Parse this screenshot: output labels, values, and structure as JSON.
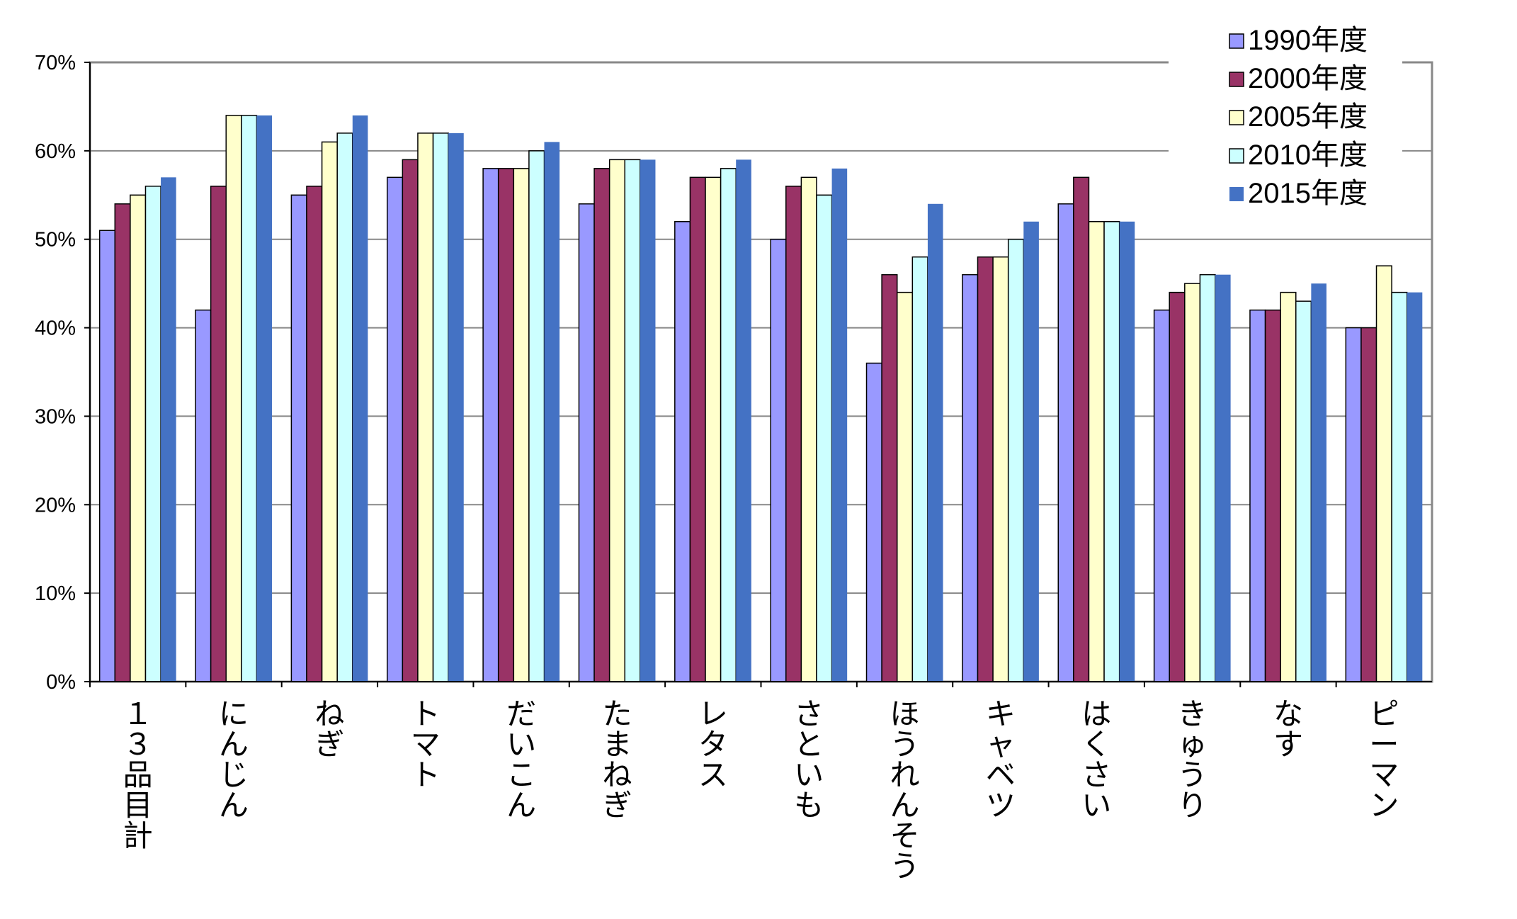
{
  "chart_data": {
    "type": "bar",
    "categories": [
      "１３品目計",
      "にんじん",
      "ねぎ",
      "トマト",
      "だいこん",
      "たまねぎ",
      "レタス",
      "さといも",
      "ほうれんそう",
      "キャベツ",
      "はくさい",
      "きゅうり",
      "なす",
      "ピーマン"
    ],
    "series": [
      {
        "name": "1990年度",
        "color": "#9999ff",
        "values": [
          51,
          42,
          55,
          57,
          58,
          54,
          52,
          50,
          36,
          46,
          54,
          42,
          42,
          40
        ]
      },
      {
        "name": "2000年度",
        "color": "#993366",
        "values": [
          54,
          56,
          56,
          59,
          58,
          58,
          57,
          56,
          46,
          48,
          57,
          44,
          42,
          40
        ]
      },
      {
        "name": "2005年度",
        "color": "#ffffcc",
        "values": [
          55,
          64,
          61,
          62,
          58,
          59,
          57,
          57,
          44,
          48,
          52,
          45,
          44,
          47
        ]
      },
      {
        "name": "2010年度",
        "color": "#ccffff",
        "values": [
          56,
          64,
          62,
          62,
          60,
          59,
          58,
          55,
          48,
          50,
          52,
          46,
          43,
          44
        ]
      },
      {
        "name": "2015年度",
        "color": "#4472c4",
        "values": [
          57,
          64,
          64,
          62,
          61,
          59,
          59,
          58,
          54,
          52,
          52,
          46,
          45,
          44
        ]
      }
    ],
    "yticks": [
      "0%",
      "10%",
      "20%",
      "30%",
      "40%",
      "50%",
      "60%",
      "70%"
    ],
    "ylim": [
      0,
      70
    ],
    "grid": true,
    "legend": "top-right",
    "title": "",
    "xlabel": "",
    "ylabel": ""
  }
}
